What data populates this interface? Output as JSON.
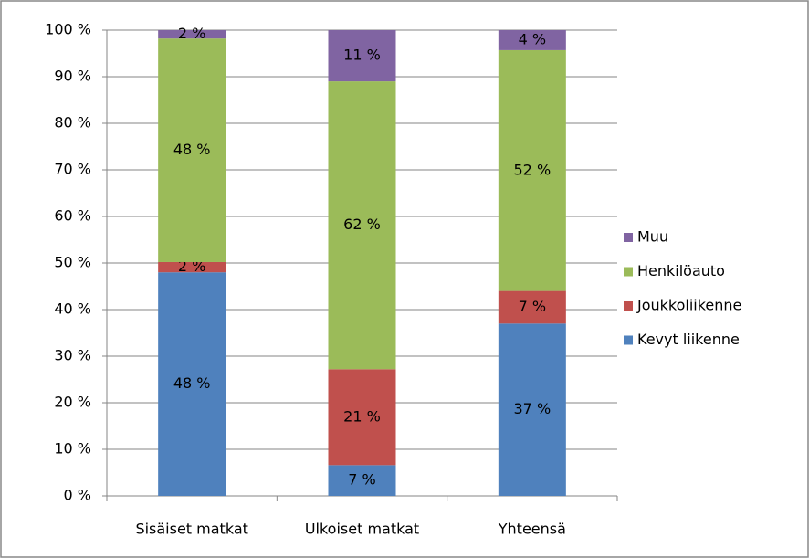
{
  "chart_data": {
    "type": "stacked_bar",
    "categories": [
      "Sisäiset matkat",
      "Ulkoiset matkat",
      "Yhteensä"
    ],
    "series": [
      {
        "name": "Kevyt liikenne",
        "color": "#4f81bd",
        "values": [
          48,
          6.6,
          37
        ],
        "value_labels": [
          "48 %",
          "7 %",
          "37 %"
        ]
      },
      {
        "name": "Joukkoliikenne",
        "color": "#c0504d",
        "values": [
          2.2,
          20.6,
          7
        ],
        "value_labels": [
          "2 %",
          "21 %",
          "7 %"
        ]
      },
      {
        "name": "Henkilöauto",
        "color": "#9bbb59",
        "values": [
          48,
          61.8,
          51.7
        ],
        "value_labels": [
          "48 %",
          "62 %",
          "52 %"
        ]
      },
      {
        "name": "Muu",
        "color": "#8064a2",
        "values": [
          1.8,
          11,
          4.3
        ],
        "value_labels": [
          "2 %",
          "11 %",
          "4 %"
        ]
      }
    ],
    "ylim": [
      0,
      100
    ],
    "yticks": [
      {
        "value": 0,
        "label": "0 %"
      },
      {
        "value": 10,
        "label": "10 %"
      },
      {
        "value": 20,
        "label": "20 %"
      },
      {
        "value": 30,
        "label": "30 %"
      },
      {
        "value": 40,
        "label": "40 %"
      },
      {
        "value": 50,
        "label": "50 %"
      },
      {
        "value": 60,
        "label": "60 %"
      },
      {
        "value": 70,
        "label": "70 %"
      },
      {
        "value": 80,
        "label": "80 %"
      },
      {
        "value": 90,
        "label": "90 %"
      },
      {
        "value": 100,
        "label": "100 %"
      }
    ],
    "grid": true,
    "legend": "right"
  }
}
